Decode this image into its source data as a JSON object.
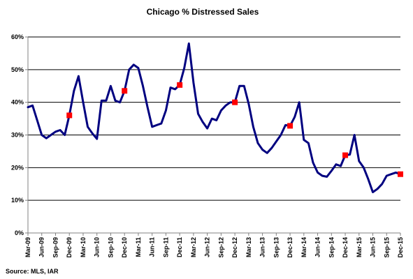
{
  "chart_data": {
    "type": "line",
    "title": "Chicago % Distressed Sales",
    "source": "Source: MLS, IAR",
    "ylim": [
      0,
      60
    ],
    "yticks": [
      0,
      10,
      20,
      30,
      40,
      50,
      60
    ],
    "ytick_labels": [
      "0%",
      "10%",
      "20%",
      "30%",
      "40%",
      "50%",
      "60%"
    ],
    "grid": true,
    "legend": "none",
    "x_tick_labels": [
      "Mar-09",
      "Jun-09",
      "Sep-09",
      "Dec-09",
      "Mar-10",
      "Jun-10",
      "Sep-10",
      "Dec-10",
      "Mar-11",
      "Jun-11",
      "Sep-11",
      "Dec-11",
      "Mar-12",
      "Jun-12",
      "Sep-12",
      "Dec-12",
      "Mar-13",
      "Jun-13",
      "Sep-13",
      "Dec-13",
      "Mar-14",
      "Jun-14",
      "Sep-14",
      "Dec-14",
      "Mar-15",
      "Jun-15",
      "Sep-15",
      "Dec-15"
    ],
    "line_color": "#000080",
    "marker_color": "#ff0000",
    "series": [
      {
        "values": [
          38.5,
          39,
          34.5,
          30,
          29,
          30,
          31,
          31.5,
          30,
          36,
          43.5,
          48,
          40,
          32.5,
          30.5,
          28.8,
          40.5,
          40.5,
          45,
          40.5,
          40,
          43.5,
          50,
          51.5,
          50.5,
          45,
          38.5,
          32.5,
          33,
          33.5,
          37.5,
          44.5,
          44,
          45.3,
          50.5,
          58,
          46,
          36.5,
          34,
          32,
          35,
          34.5,
          37.5,
          39,
          40,
          40,
          45,
          45,
          39.5,
          32.5,
          27.5,
          25.5,
          24.5,
          26,
          28,
          30,
          33,
          32.8,
          35.5,
          40,
          28.5,
          27.5,
          21.5,
          18.5,
          17.5,
          17.2,
          19,
          21,
          20.5,
          23.8,
          24,
          30,
          22,
          20,
          16.5,
          12.5,
          13.5,
          15,
          17.5,
          18,
          18.5,
          18
        ]
      }
    ],
    "highlight_points": [
      {
        "label": "Dec-09",
        "value": 36
      },
      {
        "label": "Dec-10",
        "value": 43.5
      },
      {
        "label": "Dec-11",
        "value": 45.3
      },
      {
        "label": "Dec-12",
        "value": 40
      },
      {
        "label": "Dec-13",
        "value": 32.8
      },
      {
        "label": "Dec-14",
        "value": 23.8
      },
      {
        "label": "Dec-15",
        "value": 18
      }
    ]
  }
}
